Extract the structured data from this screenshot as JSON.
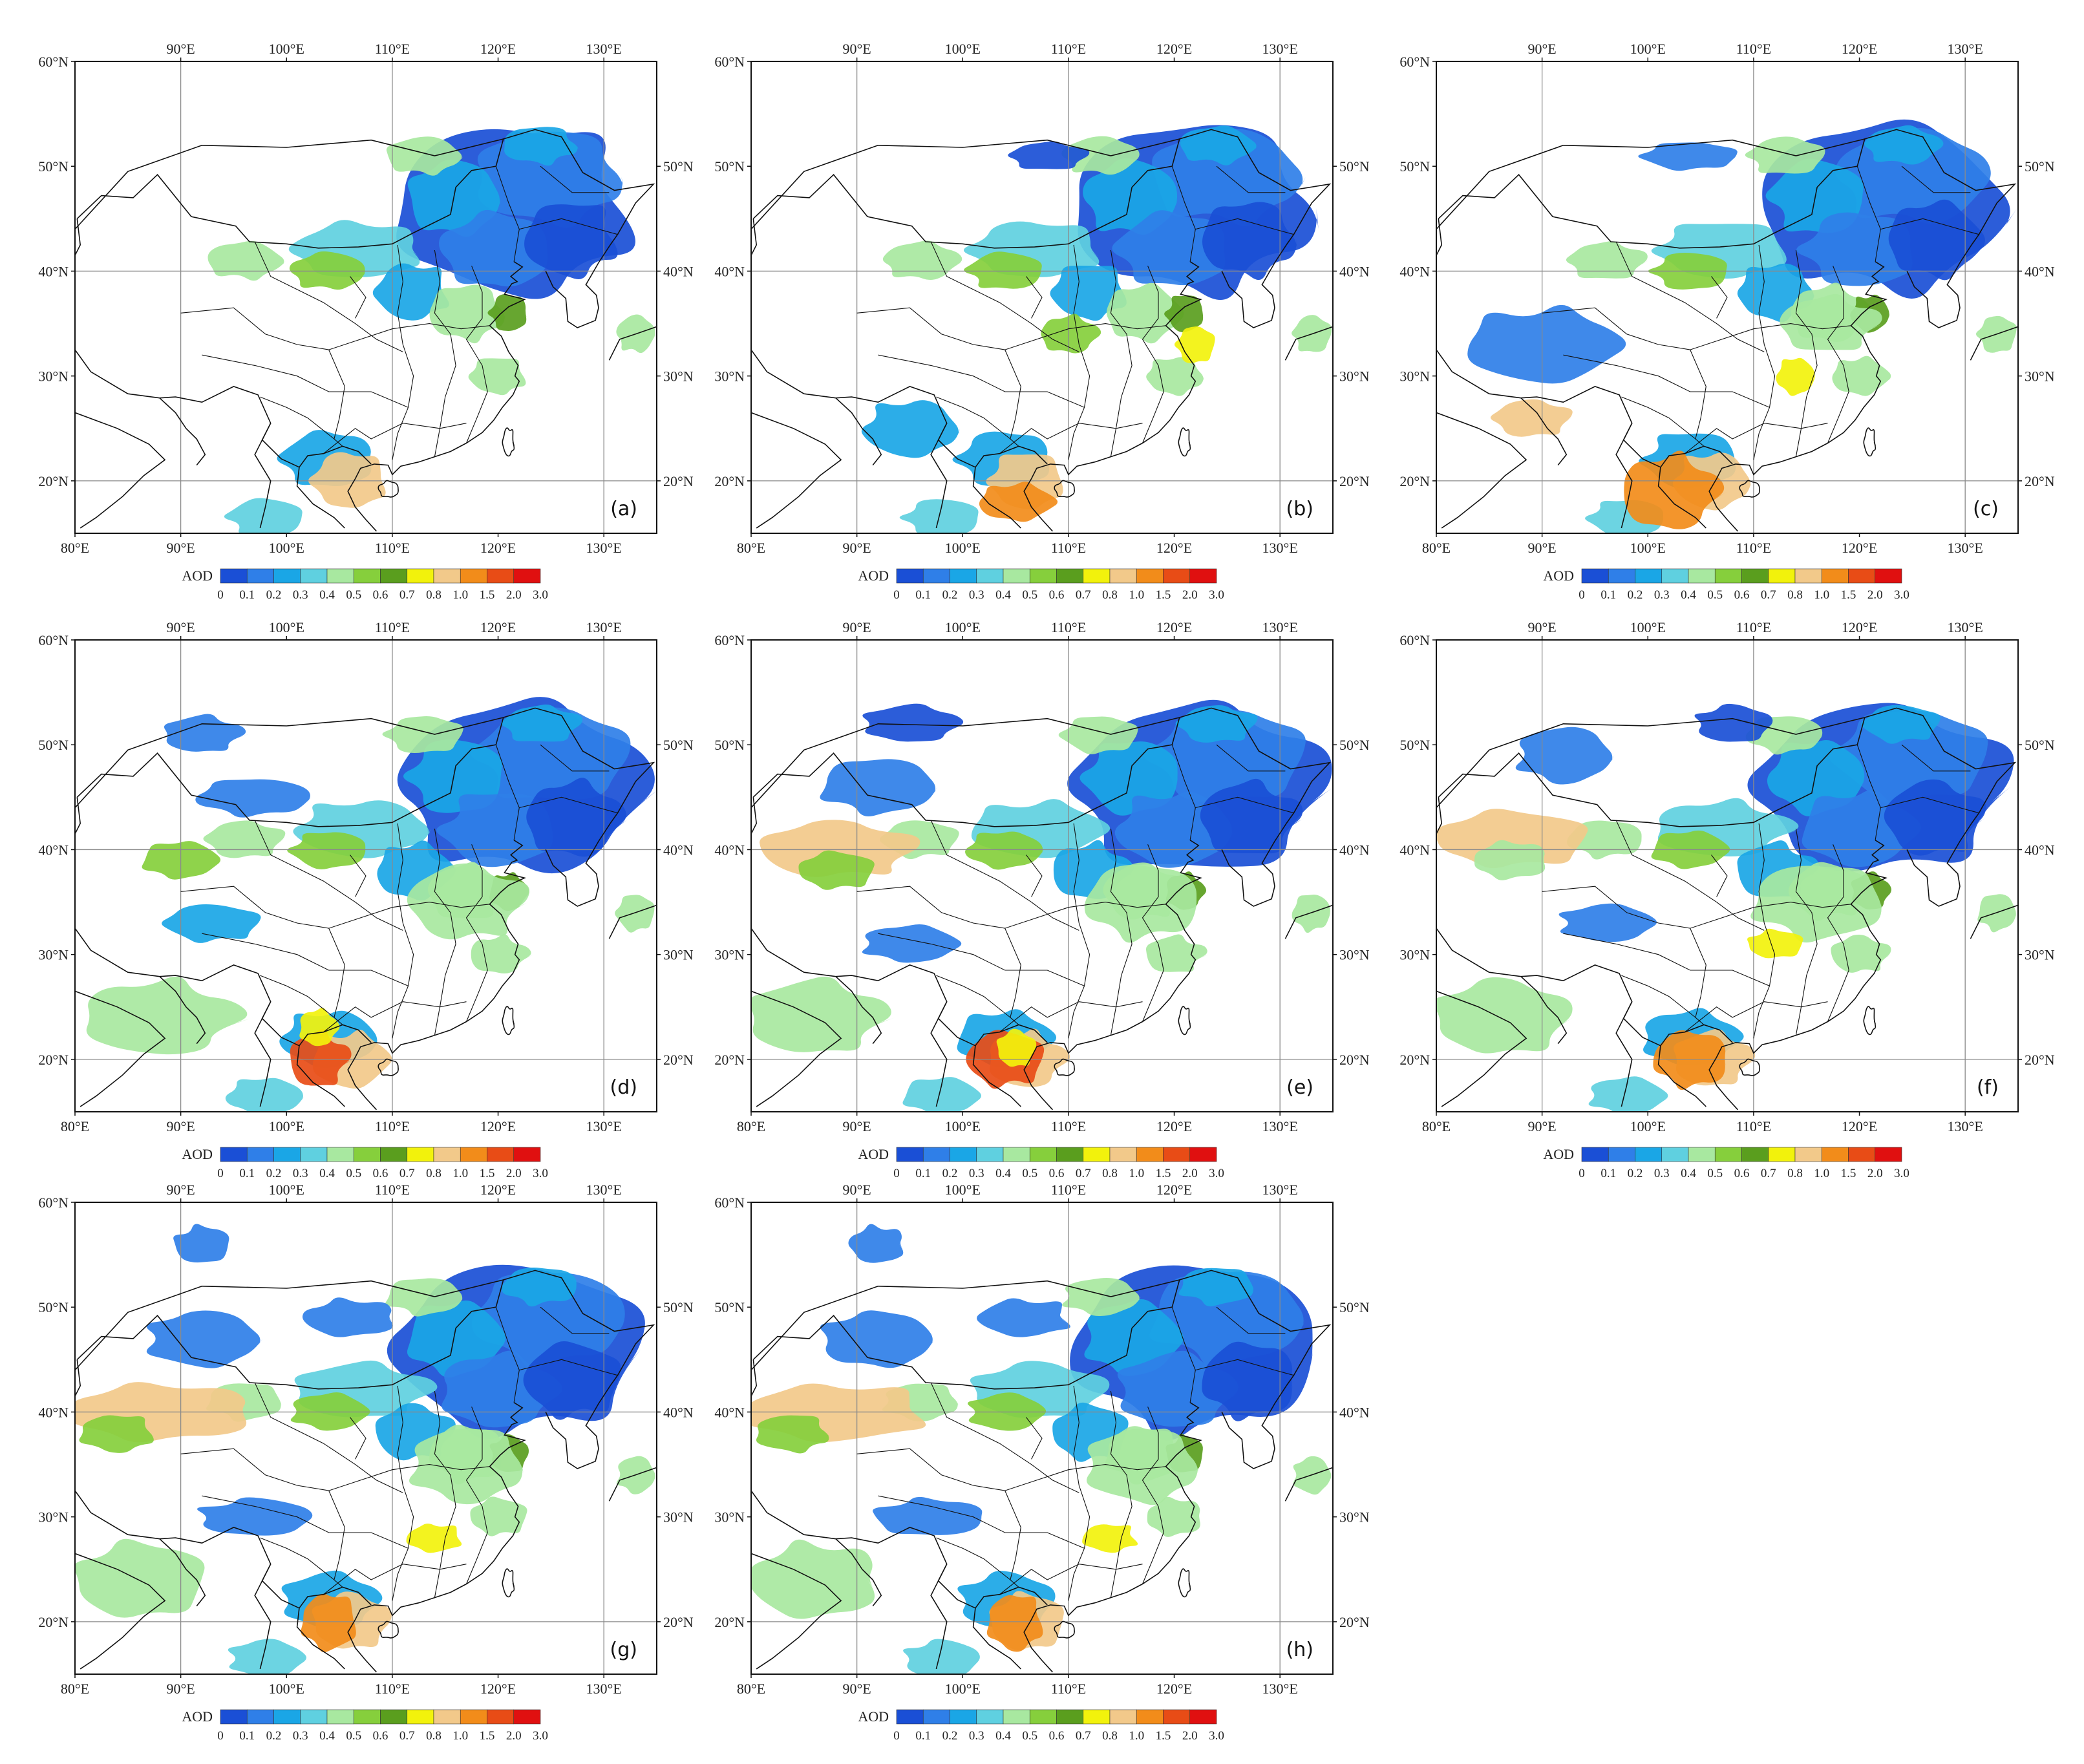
{
  "panels": [
    {
      "label": "(a)"
    },
    {
      "label": "(b)"
    },
    {
      "label": "(c)"
    },
    {
      "label": "(d)"
    },
    {
      "label": "(e)"
    },
    {
      "label": "(f)"
    },
    {
      "label": "(g)"
    },
    {
      "label": "(h)"
    }
  ],
  "map": {
    "lon_range": [
      80,
      135
    ],
    "lat_range": [
      15,
      60
    ],
    "lon_ticks_bottom": [
      "80°E",
      "90°E",
      "100°E",
      "110°E",
      "120°E",
      "130°E"
    ],
    "lon_ticks_top": [
      "90°E",
      "100°E",
      "110°E",
      "120°E",
      "130°E"
    ],
    "lat_ticks_left": [
      "20°N",
      "30°N",
      "40°N",
      "50°N",
      "60°N"
    ],
    "lat_ticks_right": [
      "20°N",
      "30°N",
      "40°N",
      "50°N"
    ]
  },
  "colorbar": {
    "title": "AOD",
    "ticks": [
      "0",
      "0.1",
      "0.2",
      "0.3",
      "0.4",
      "0.5",
      "0.6",
      "0.7",
      "0.8",
      "1.0",
      "1.5",
      "2.0",
      "3.0"
    ],
    "colors": [
      "#1a4fd6",
      "#2f7fe8",
      "#1aa6e6",
      "#5fd0e0",
      "#a8e8a0",
      "#86cf3c",
      "#5a9e1e",
      "#f2f20c",
      "#f2c98a",
      "#f28c1a",
      "#e84c16",
      "#e01010"
    ]
  }
}
